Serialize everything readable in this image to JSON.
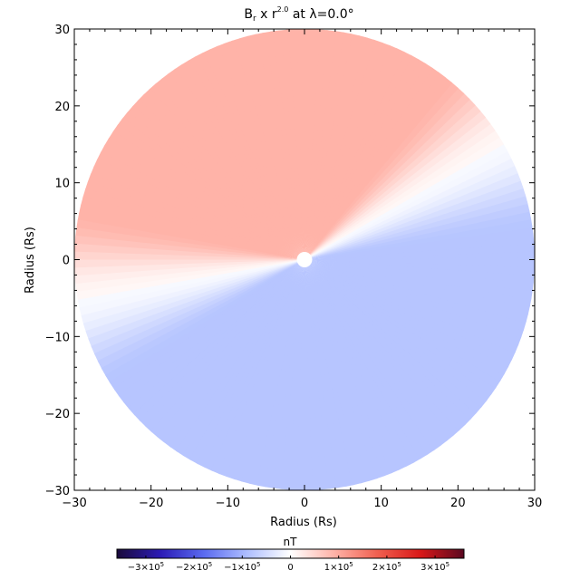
{
  "chart_data": {
    "type": "heatmap",
    "title": {
      "base": "B",
      "subscript": "r",
      "middle": " x r",
      "superscript": "2.0",
      "suffix": " at λ=0.0°"
    },
    "xlabel": "Radius (Rs)",
    "ylabel": "Radius (Rs)",
    "xlim": [
      -30,
      30
    ],
    "ylim": [
      -30,
      30
    ],
    "x_ticks": [
      -30,
      -20,
      -10,
      0,
      10,
      20,
      30
    ],
    "y_ticks": [
      -30,
      -20,
      -10,
      0,
      10,
      20,
      30
    ],
    "x_tick_labels": [
      "−30",
      "−20",
      "−10",
      "0",
      "10",
      "20",
      "30"
    ],
    "y_tick_labels": [
      "−30",
      "−20",
      "−10",
      "0",
      "10",
      "20",
      "30"
    ],
    "disk_radius": 30,
    "occulter_radius": 1,
    "current_sheet_angles_deg": [
      30,
      190
    ],
    "positive_sector_value": 90000.0,
    "negative_sector_value": -80000.0,
    "colorbar": {
      "label": "nT",
      "range": [
        -360000.0,
        360000.0
      ],
      "ticks": [
        {
          "value": -300000.0,
          "mant": "−3×10",
          "exp": "5"
        },
        {
          "value": -200000.0,
          "mant": "−2×10",
          "exp": "5"
        },
        {
          "value": -100000.0,
          "mant": "−1×10",
          "exp": "5"
        },
        {
          "value": 0,
          "mant": "0",
          "exp": ""
        },
        {
          "value": 100000.0,
          "mant": "1×10",
          "exp": "5"
        },
        {
          "value": 200000.0,
          "mant": "2×10",
          "exp": "5"
        },
        {
          "value": 300000.0,
          "mant": "3×10",
          "exp": "5"
        }
      ],
      "colors": [
        "#1a0a3a",
        "#2b1bb5",
        "#5a6af0",
        "#aebeff",
        "#ffffff",
        "#ffb3a8",
        "#f06050",
        "#d81818",
        "#5a0820"
      ]
    }
  }
}
